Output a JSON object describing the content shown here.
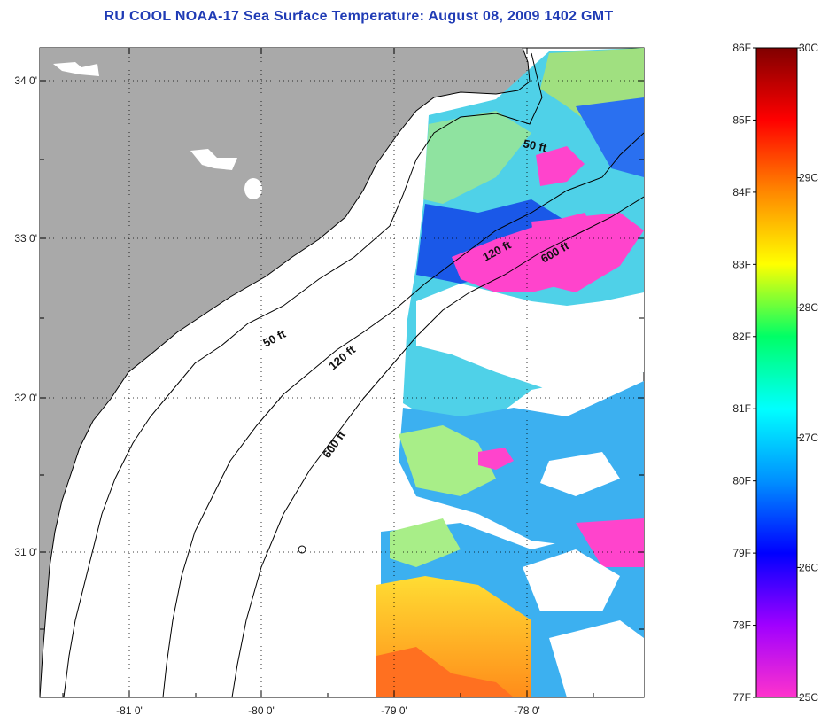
{
  "title": "RU COOL  NOAA-17  Sea Surface Temperature:  August 08, 2009 1402 GMT",
  "lat_labels": [
    "34 0'",
    "33 0'",
    "32 0'",
    "31 0'"
  ],
  "lon_labels": [
    "-81 0'",
    "-80 0'",
    "-79 0'",
    "-78 0'"
  ],
  "contours": [
    {
      "label": "50 ft"
    },
    {
      "label": "120 ft"
    },
    {
      "label": "600 ft"
    },
    {
      "label": "50 ft"
    },
    {
      "label": "120 ft"
    },
    {
      "label": "600 ft"
    }
  ],
  "colorbar": {
    "fahrenheit": [
      "86F",
      "85F",
      "84F",
      "83F",
      "82F",
      "81F",
      "80F",
      "79F",
      "78F",
      "77F"
    ],
    "celsius": [
      "30C",
      "29C",
      "28C",
      "27C",
      "26C",
      "25C"
    ],
    "colors": [
      "#ff33cc",
      "#a000ff",
      "#0000ff",
      "#0090ff",
      "#00ffff",
      "#00ff66",
      "#ffff00",
      "#ff8800",
      "#ff0000",
      "#800000"
    ]
  },
  "colors": {
    "land": "#a9a9a9",
    "title": "#1f3bb5",
    "grid": "#000000"
  }
}
